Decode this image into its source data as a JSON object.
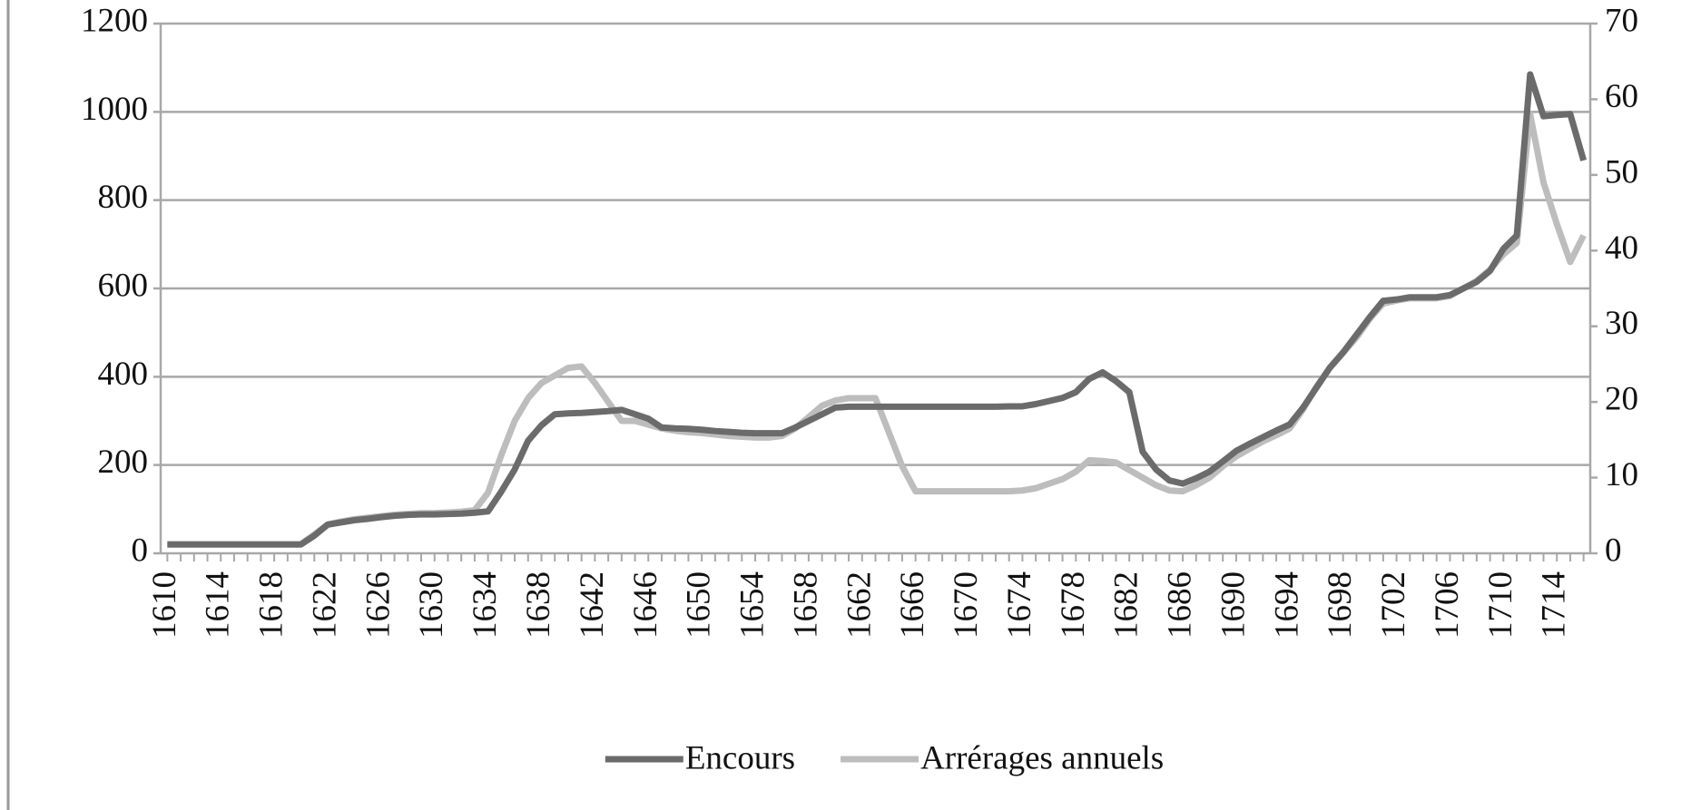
{
  "chart_data": {
    "type": "line",
    "x": [
      1610,
      1611,
      1612,
      1613,
      1614,
      1615,
      1616,
      1617,
      1618,
      1619,
      1620,
      1621,
      1622,
      1623,
      1624,
      1625,
      1626,
      1627,
      1628,
      1629,
      1630,
      1631,
      1632,
      1633,
      1634,
      1635,
      1636,
      1637,
      1638,
      1639,
      1640,
      1641,
      1642,
      1643,
      1644,
      1645,
      1646,
      1647,
      1648,
      1649,
      1650,
      1651,
      1652,
      1653,
      1654,
      1655,
      1656,
      1657,
      1658,
      1659,
      1660,
      1661,
      1662,
      1663,
      1664,
      1665,
      1666,
      1667,
      1668,
      1669,
      1670,
      1671,
      1672,
      1673,
      1674,
      1675,
      1676,
      1677,
      1678,
      1679,
      1680,
      1681,
      1682,
      1683,
      1684,
      1685,
      1686,
      1687,
      1688,
      1689,
      1690,
      1691,
      1692,
      1693,
      1694,
      1695,
      1696,
      1697,
      1698,
      1699,
      1700,
      1701,
      1702,
      1703,
      1704,
      1705,
      1706,
      1707,
      1708,
      1709,
      1710,
      1711,
      1712,
      1713,
      1714,
      1715,
      1716
    ],
    "xlim": [
      1609.5,
      1716.5
    ],
    "xticks": [
      1610,
      1614,
      1618,
      1622,
      1626,
      1630,
      1634,
      1638,
      1642,
      1646,
      1650,
      1654,
      1658,
      1662,
      1666,
      1670,
      1674,
      1678,
      1682,
      1686,
      1690,
      1694,
      1698,
      1702,
      1706,
      1710,
      1714
    ],
    "ylim": [
      0,
      1200
    ],
    "yticks": [
      0,
      200,
      400,
      600,
      800,
      1000,
      1200
    ],
    "y2lim": [
      0,
      70
    ],
    "y2ticks": [
      0,
      10,
      20,
      30,
      40,
      50,
      60,
      70
    ],
    "grid": true,
    "legend": "bottom",
    "series": [
      {
        "name": "Encours",
        "color": "#6b6b6b",
        "values": [
          20,
          20,
          20,
          20,
          20,
          20,
          20,
          20,
          20,
          20,
          20,
          40,
          65,
          70,
          75,
          78,
          82,
          85,
          87,
          88,
          88,
          89,
          90,
          92,
          95,
          140,
          190,
          255,
          290,
          315,
          317,
          318,
          320,
          322,
          325,
          315,
          305,
          285,
          283,
          282,
          280,
          277,
          275,
          273,
          272,
          272,
          272,
          285,
          300,
          315,
          330,
          332,
          332,
          332,
          332,
          332,
          332,
          332,
          332,
          332,
          332,
          332,
          332,
          333,
          333,
          338,
          345,
          352,
          365,
          395,
          410,
          390,
          365,
          230,
          190,
          165,
          158,
          170,
          185,
          208,
          232,
          248,
          263,
          278,
          292,
          330,
          375,
          420,
          455,
          495,
          535,
          572,
          575,
          580,
          580,
          580,
          585,
          600,
          615,
          640,
          690,
          720,
          1085,
          990,
          993,
          995,
          890
        ]
      },
      {
        "name": "Arrérages annuels",
        "color": "#bdbdbd",
        "axis": "y2",
        "values": [
          1.2,
          1.2,
          1.2,
          1.2,
          1.2,
          1.2,
          1.2,
          1.2,
          1.2,
          1.2,
          1.2,
          2.5,
          3.8,
          4.2,
          4.5,
          4.7,
          4.9,
          5.1,
          5.2,
          5.3,
          5.3,
          5.4,
          5.5,
          5.7,
          8,
          13,
          17.5,
          20.5,
          22.5,
          23.5,
          24.5,
          24.7,
          22.5,
          20,
          17.5,
          17.5,
          17,
          16.5,
          16.2,
          16,
          15.9,
          15.7,
          15.5,
          15.4,
          15.3,
          15.3,
          15.5,
          16.5,
          18,
          19.5,
          20.2,
          20.5,
          20.5,
          20.5,
          16,
          11.5,
          8.2,
          8.2,
          8.2,
          8.2,
          8.2,
          8.2,
          8.2,
          8.2,
          8.3,
          8.6,
          9.2,
          9.8,
          10.8,
          12.3,
          12.2,
          12,
          11,
          10,
          9,
          8.3,
          8.2,
          9,
          10,
          11.5,
          12.8,
          13.8,
          14.8,
          15.6,
          16.5,
          19,
          22,
          24.5,
          26.5,
          28.5,
          31,
          33,
          33.4,
          33.7,
          33.7,
          33.7,
          34,
          35,
          36,
          37.5,
          39.5,
          41,
          58,
          49,
          43.5,
          38.5,
          42
        ]
      }
    ]
  }
}
